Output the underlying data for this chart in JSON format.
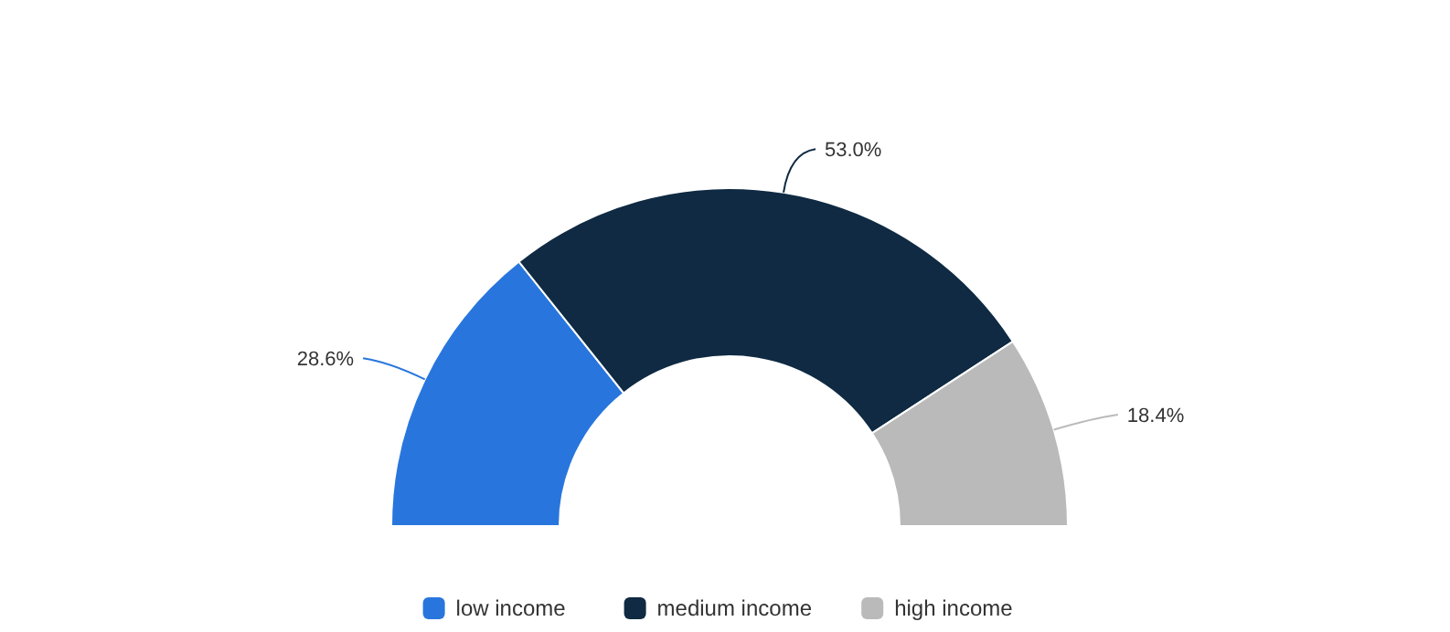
{
  "chart_data": {
    "type": "donut",
    "categories": [
      "low income",
      "medium income",
      "high income"
    ],
    "values": [
      28.6,
      53.0,
      18.4
    ],
    "colors": [
      "#2876dd",
      "#0f2a42",
      "#bababa"
    ],
    "value_labels": [
      "28.6%",
      "53.0%",
      "18.4%"
    ],
    "legend": "bottom"
  }
}
